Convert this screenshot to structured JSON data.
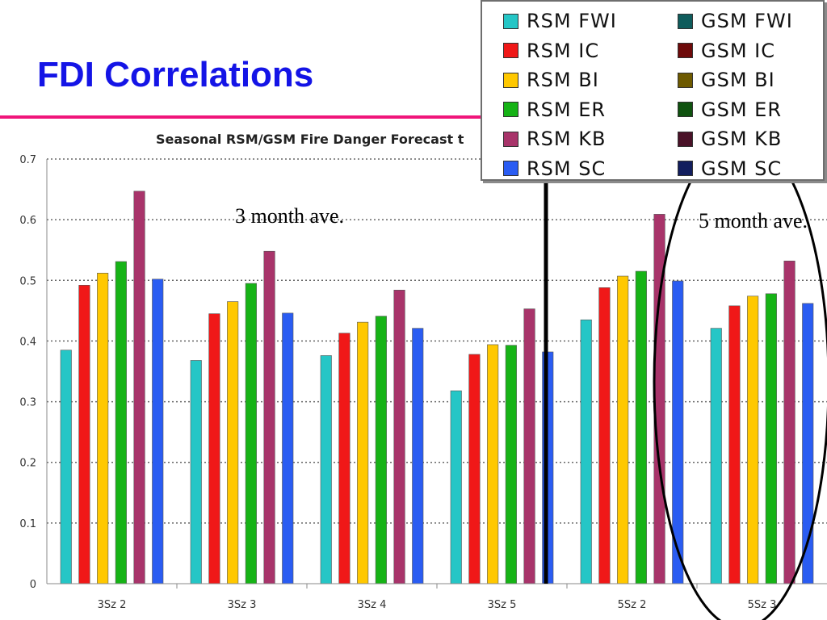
{
  "slide": {
    "title": "FDI Correlations",
    "annotation_3month": "3 month ave.",
    "annotation_5month": "5 month ave."
  },
  "colors": {
    "title": "#1414e6",
    "rule": "#f0157a",
    "grid": "#666666"
  },
  "chart_data": {
    "type": "bar",
    "title": "Seasonal RSM/GSM Fire Danger Forecast t",
    "xlabel": "",
    "ylabel": "",
    "ylim": [
      0,
      0.7
    ],
    "yticks": [
      0,
      0.1,
      0.2,
      0.3,
      0.4,
      0.5,
      0.6,
      0.7
    ],
    "ytick_labels": [
      "0",
      "0.1",
      "0.2",
      "0.3",
      "0.4",
      "0.5",
      "0.6",
      "0.7"
    ],
    "grid": "horizontal dotted",
    "categories": [
      "3Sz 2",
      "3Sz 3",
      "3Sz 4",
      "3Sz 5",
      "5Sz 2",
      "5Sz 3"
    ],
    "series": [
      {
        "name": "RSM FWI",
        "color": "#25c6c6",
        "values": [
          0.385,
          0.368,
          0.376,
          0.318,
          0.435,
          0.421
        ]
      },
      {
        "name": "RSM IC",
        "color": "#f01818",
        "values": [
          0.492,
          0.445,
          0.413,
          0.378,
          0.488,
          0.458
        ]
      },
      {
        "name": "RSM BI",
        "color": "#ffc800",
        "values": [
          0.512,
          0.465,
          0.431,
          0.394,
          0.507,
          0.474
        ]
      },
      {
        "name": "RSM ER",
        "color": "#16b316",
        "values": [
          0.531,
          0.495,
          0.441,
          0.393,
          0.515,
          0.478
        ]
      },
      {
        "name": "RSM KB",
        "color": "#a8346a",
        "values": [
          0.647,
          0.548,
          0.484,
          0.453,
          0.609,
          0.532
        ]
      },
      {
        "name": "RSM SC",
        "color": "#2a5cf2",
        "values": [
          0.502,
          0.446,
          0.421,
          0.382,
          0.499,
          0.462
        ]
      }
    ],
    "legend": {
      "placement": "top-right",
      "entries": [
        {
          "label": "RSM FWI",
          "color": "#25c6c6"
        },
        {
          "label": "RSM IC",
          "color": "#f01818"
        },
        {
          "label": "RSM BI",
          "color": "#ffc800"
        },
        {
          "label": "RSM ER",
          "color": "#16b316"
        },
        {
          "label": "RSM KB",
          "color": "#a8346a"
        },
        {
          "label": "RSM SC",
          "color": "#2a5cf2"
        },
        {
          "label": "GSM FWI",
          "color": "#0f5c5c"
        },
        {
          "label": "GSM IC",
          "color": "#6e0a0a"
        },
        {
          "label": "GSM BI",
          "color": "#6e5a00"
        },
        {
          "label": "GSM ER",
          "color": "#0f520f"
        },
        {
          "label": "GSM KB",
          "color": "#4a1228"
        },
        {
          "label": "GSM SC",
          "color": "#121e5e"
        }
      ]
    }
  }
}
